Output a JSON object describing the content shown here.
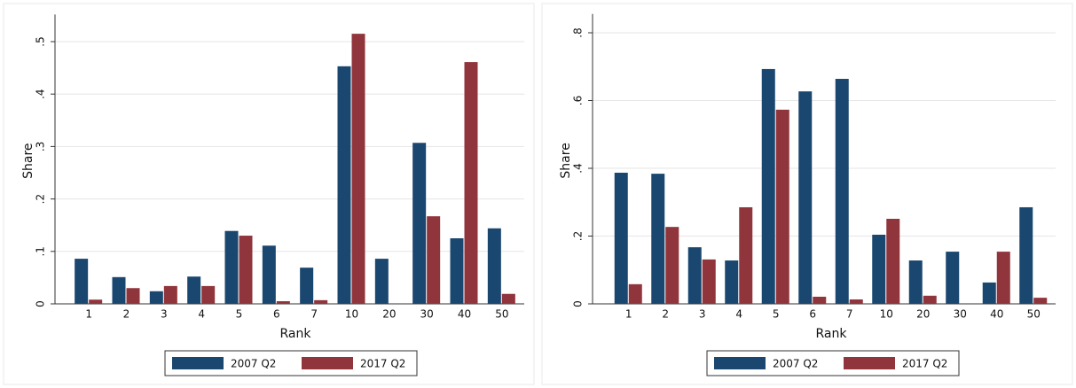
{
  "chart_data": [
    {
      "type": "bar",
      "x_label": "Rank",
      "y_label": "Share",
      "categories": [
        "1",
        "2",
        "3",
        "4",
        "5",
        "6",
        "7",
        "10",
        "20",
        "30",
        "40",
        "50"
      ],
      "series": [
        {
          "name": "2007 Q2",
          "color": "#1a476f",
          "values": [
            0.086,
            0.051,
            0.024,
            0.052,
            0.139,
            0.111,
            0.069,
            0.453,
            0.086,
            0.307,
            0.125,
            0.144
          ]
        },
        {
          "name": "2017 Q2",
          "color": "#90353b",
          "values": [
            0.008,
            0.03,
            0.034,
            0.034,
            0.13,
            0.005,
            0.007,
            0.515,
            0,
            0.167,
            0.461,
            0.019
          ]
        }
      ],
      "ylim": [
        0,
        0.545
      ],
      "yticks": [
        0,
        {
          "value": 0.1,
          "label": ".1"
        },
        {
          "value": 0.2,
          "label": ".2"
        },
        {
          "value": 0.3,
          "label": ".3"
        },
        {
          "value": 0.4,
          "label": ".4"
        },
        {
          "value": 0.5,
          "label": ".5"
        }
      ],
      "grid": true
    },
    {
      "type": "bar",
      "x_label": "Rank",
      "y_label": "Share",
      "categories": [
        "1",
        "2",
        "3",
        "4",
        "5",
        "6",
        "7",
        "10",
        "20",
        "30",
        "40",
        "50"
      ],
      "series": [
        {
          "name": "2007 Q2",
          "color": "#1a476f",
          "values": [
            0.387,
            0.384,
            0.167,
            0.128,
            0.693,
            0.627,
            0.664,
            0.204,
            0.128,
            0.154,
            0.063,
            0.285
          ]
        },
        {
          "name": "2017 Q2",
          "color": "#90353b",
          "values": [
            0.058,
            0.227,
            0.131,
            0.285,
            0.573,
            0.021,
            0.013,
            0.251,
            0.024,
            0,
            0.154,
            0.018
          ]
        }
      ],
      "ylim": [
        0,
        0.845
      ],
      "yticks": [
        0,
        {
          "value": 0.2,
          "label": ".2"
        },
        {
          "value": 0.4,
          "label": ".4"
        },
        {
          "value": 0.6,
          "label": ".6"
        },
        {
          "value": 0.8,
          "label": ".8"
        }
      ],
      "grid": true
    }
  ]
}
